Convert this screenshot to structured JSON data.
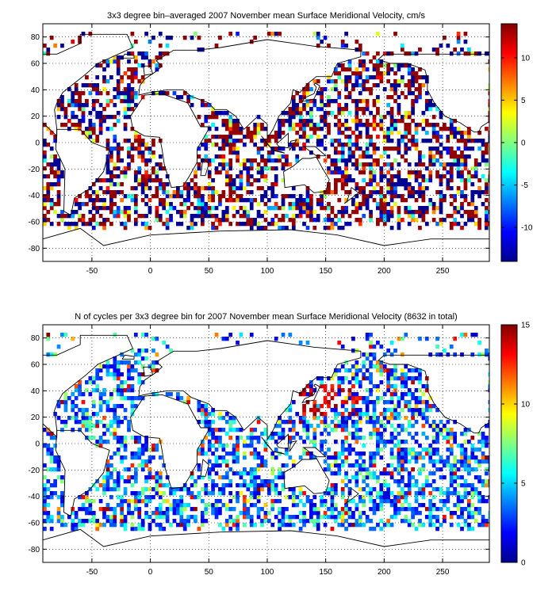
{
  "chart_data": [
    {
      "type": "heatmap",
      "title": "3x3 degree bin–averaged 2007 November mean Surface Meridional Velocity, cm/s",
      "xlabel": "",
      "ylabel": "",
      "xlim": [
        -92,
        290
      ],
      "ylim": [
        -90,
        90
      ],
      "x_ticks": [
        -50,
        0,
        50,
        100,
        150,
        200,
        250
      ],
      "y_ticks": [
        80,
        60,
        40,
        20,
        0,
        -20,
        -40,
        -60,
        -80
      ],
      "bin_size_deg": 3,
      "colorbar": {
        "colormap": "jet",
        "range": [
          -14,
          14
        ],
        "ticks": [
          10,
          5,
          0,
          -5,
          -10
        ]
      },
      "grid": true,
      "values": "sampled 3x3 degree ocean bins (north-south velocity, -14 to 14 cm/s)"
    },
    {
      "type": "heatmap",
      "title": "N of cycles per 3x3 degree bin for 2007 November mean Surface Meridional Velocity (8632 in total)",
      "xlabel": "",
      "ylabel": "",
      "xlim": [
        -92,
        290
      ],
      "ylim": [
        -90,
        90
      ],
      "x_ticks": [
        -50,
        0,
        50,
        100,
        150,
        200,
        250
      ],
      "y_ticks": [
        80,
        60,
        40,
        20,
        0,
        -20,
        -40,
        -60,
        -80
      ],
      "bin_size_deg": 3,
      "total_cycles": 8632,
      "colorbar": {
        "colormap": "jet",
        "range": [
          0,
          15
        ],
        "ticks": [
          15,
          10,
          5,
          0
        ]
      },
      "grid": true,
      "values": "sampled 3x3 degree ocean bins (cycle counts 0 to 15)"
    }
  ]
}
